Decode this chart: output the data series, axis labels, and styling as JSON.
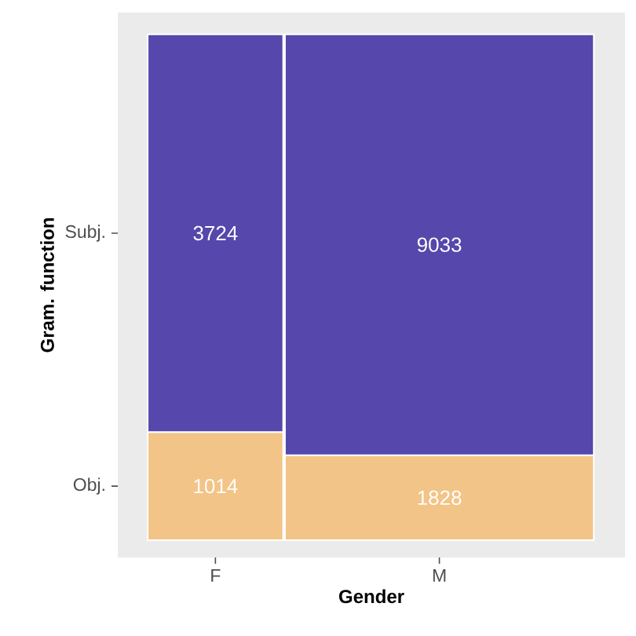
{
  "chart_data": {
    "type": "other",
    "data_labels": true,
    "xlabel": "Gender",
    "ylabel": "Gram. function",
    "categories": [
      "F",
      "M"
    ],
    "series": [
      {
        "name": "Obj.",
        "color": "#f3c487",
        "values": [
          1014,
          1828
        ]
      },
      {
        "name": "Subj.",
        "color": "#5547ab",
        "values": [
          3724,
          9033
        ]
      }
    ]
  }
}
